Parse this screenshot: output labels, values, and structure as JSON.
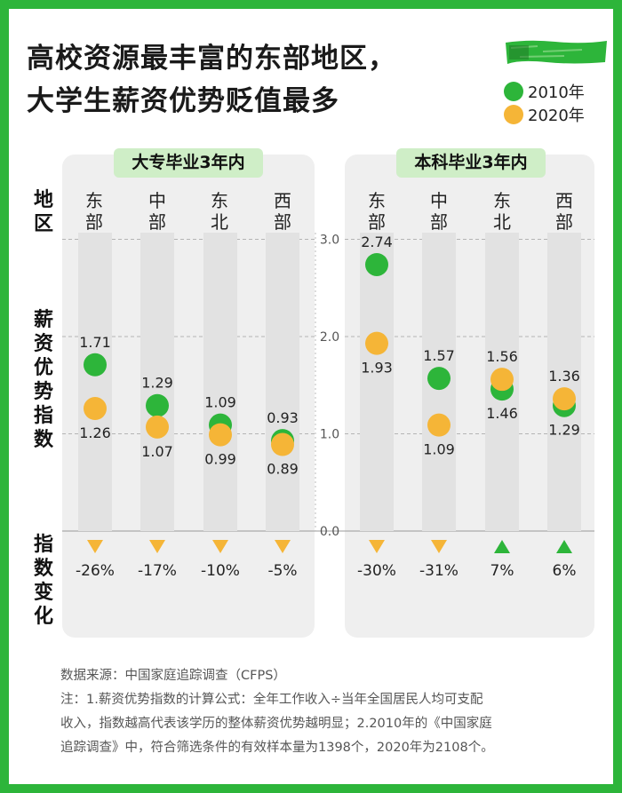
{
  "title": {
    "line1": "高校资源最丰富的东部地区，",
    "line2": "大学生薪资优势贬值最多"
  },
  "legend": [
    {
      "label": "2010年",
      "color": "#2db53a"
    },
    {
      "label": "2020年",
      "color": "#f5b537"
    }
  ],
  "side_labels": {
    "region": "地区",
    "index": "薪资优势指数",
    "change": "指数变化"
  },
  "chart_data": [
    {
      "type": "scatter",
      "title": "大专毕业3年内",
      "ylim": [
        0,
        3
      ],
      "categories": [
        "东部",
        "中部",
        "东北",
        "西部"
      ],
      "series": [
        {
          "name": "2010年",
          "values": [
            1.71,
            1.29,
            1.09,
            0.93
          ]
        },
        {
          "name": "2020年",
          "values": [
            1.26,
            1.07,
            0.99,
            0.89
          ]
        }
      ],
      "changes": [
        "-26%",
        "-17%",
        "-10%",
        "-5%"
      ],
      "change_direction": [
        "down",
        "down",
        "down",
        "down"
      ]
    },
    {
      "type": "scatter",
      "title": "本科毕业3年内",
      "ylim": [
        0,
        3
      ],
      "yticks": [
        "3.0",
        "2.0",
        "1.0",
        "0.0"
      ],
      "categories": [
        "东部",
        "中部",
        "东北",
        "西部"
      ],
      "series": [
        {
          "name": "2010年",
          "values": [
            2.74,
            1.57,
            1.46,
            1.29
          ]
        },
        {
          "name": "2020年",
          "values": [
            1.93,
            1.09,
            1.56,
            1.36
          ]
        }
      ],
      "changes": [
        "-30%",
        "-31%",
        "7%",
        "6%"
      ],
      "change_direction": [
        "down",
        "down",
        "up",
        "up"
      ]
    }
  ],
  "colors": {
    "green": "#2db53a",
    "orange": "#f5b537",
    "down_marker": "#f5b537",
    "up_marker": "#2db53a"
  },
  "footer": {
    "line1": "数据来源：中国家庭追踪调查（CFPS）",
    "line2": "注：1.薪资优势指数的计算公式：全年工作收入÷当年全国居民人均可支配",
    "line3": "收入，指数越高代表该学历的整体薪资优势越明显；2.2010年的《中国家庭",
    "line4": "追踪调查》中，符合筛选条件的有效样本量为1398个，2020年为2108个。"
  }
}
